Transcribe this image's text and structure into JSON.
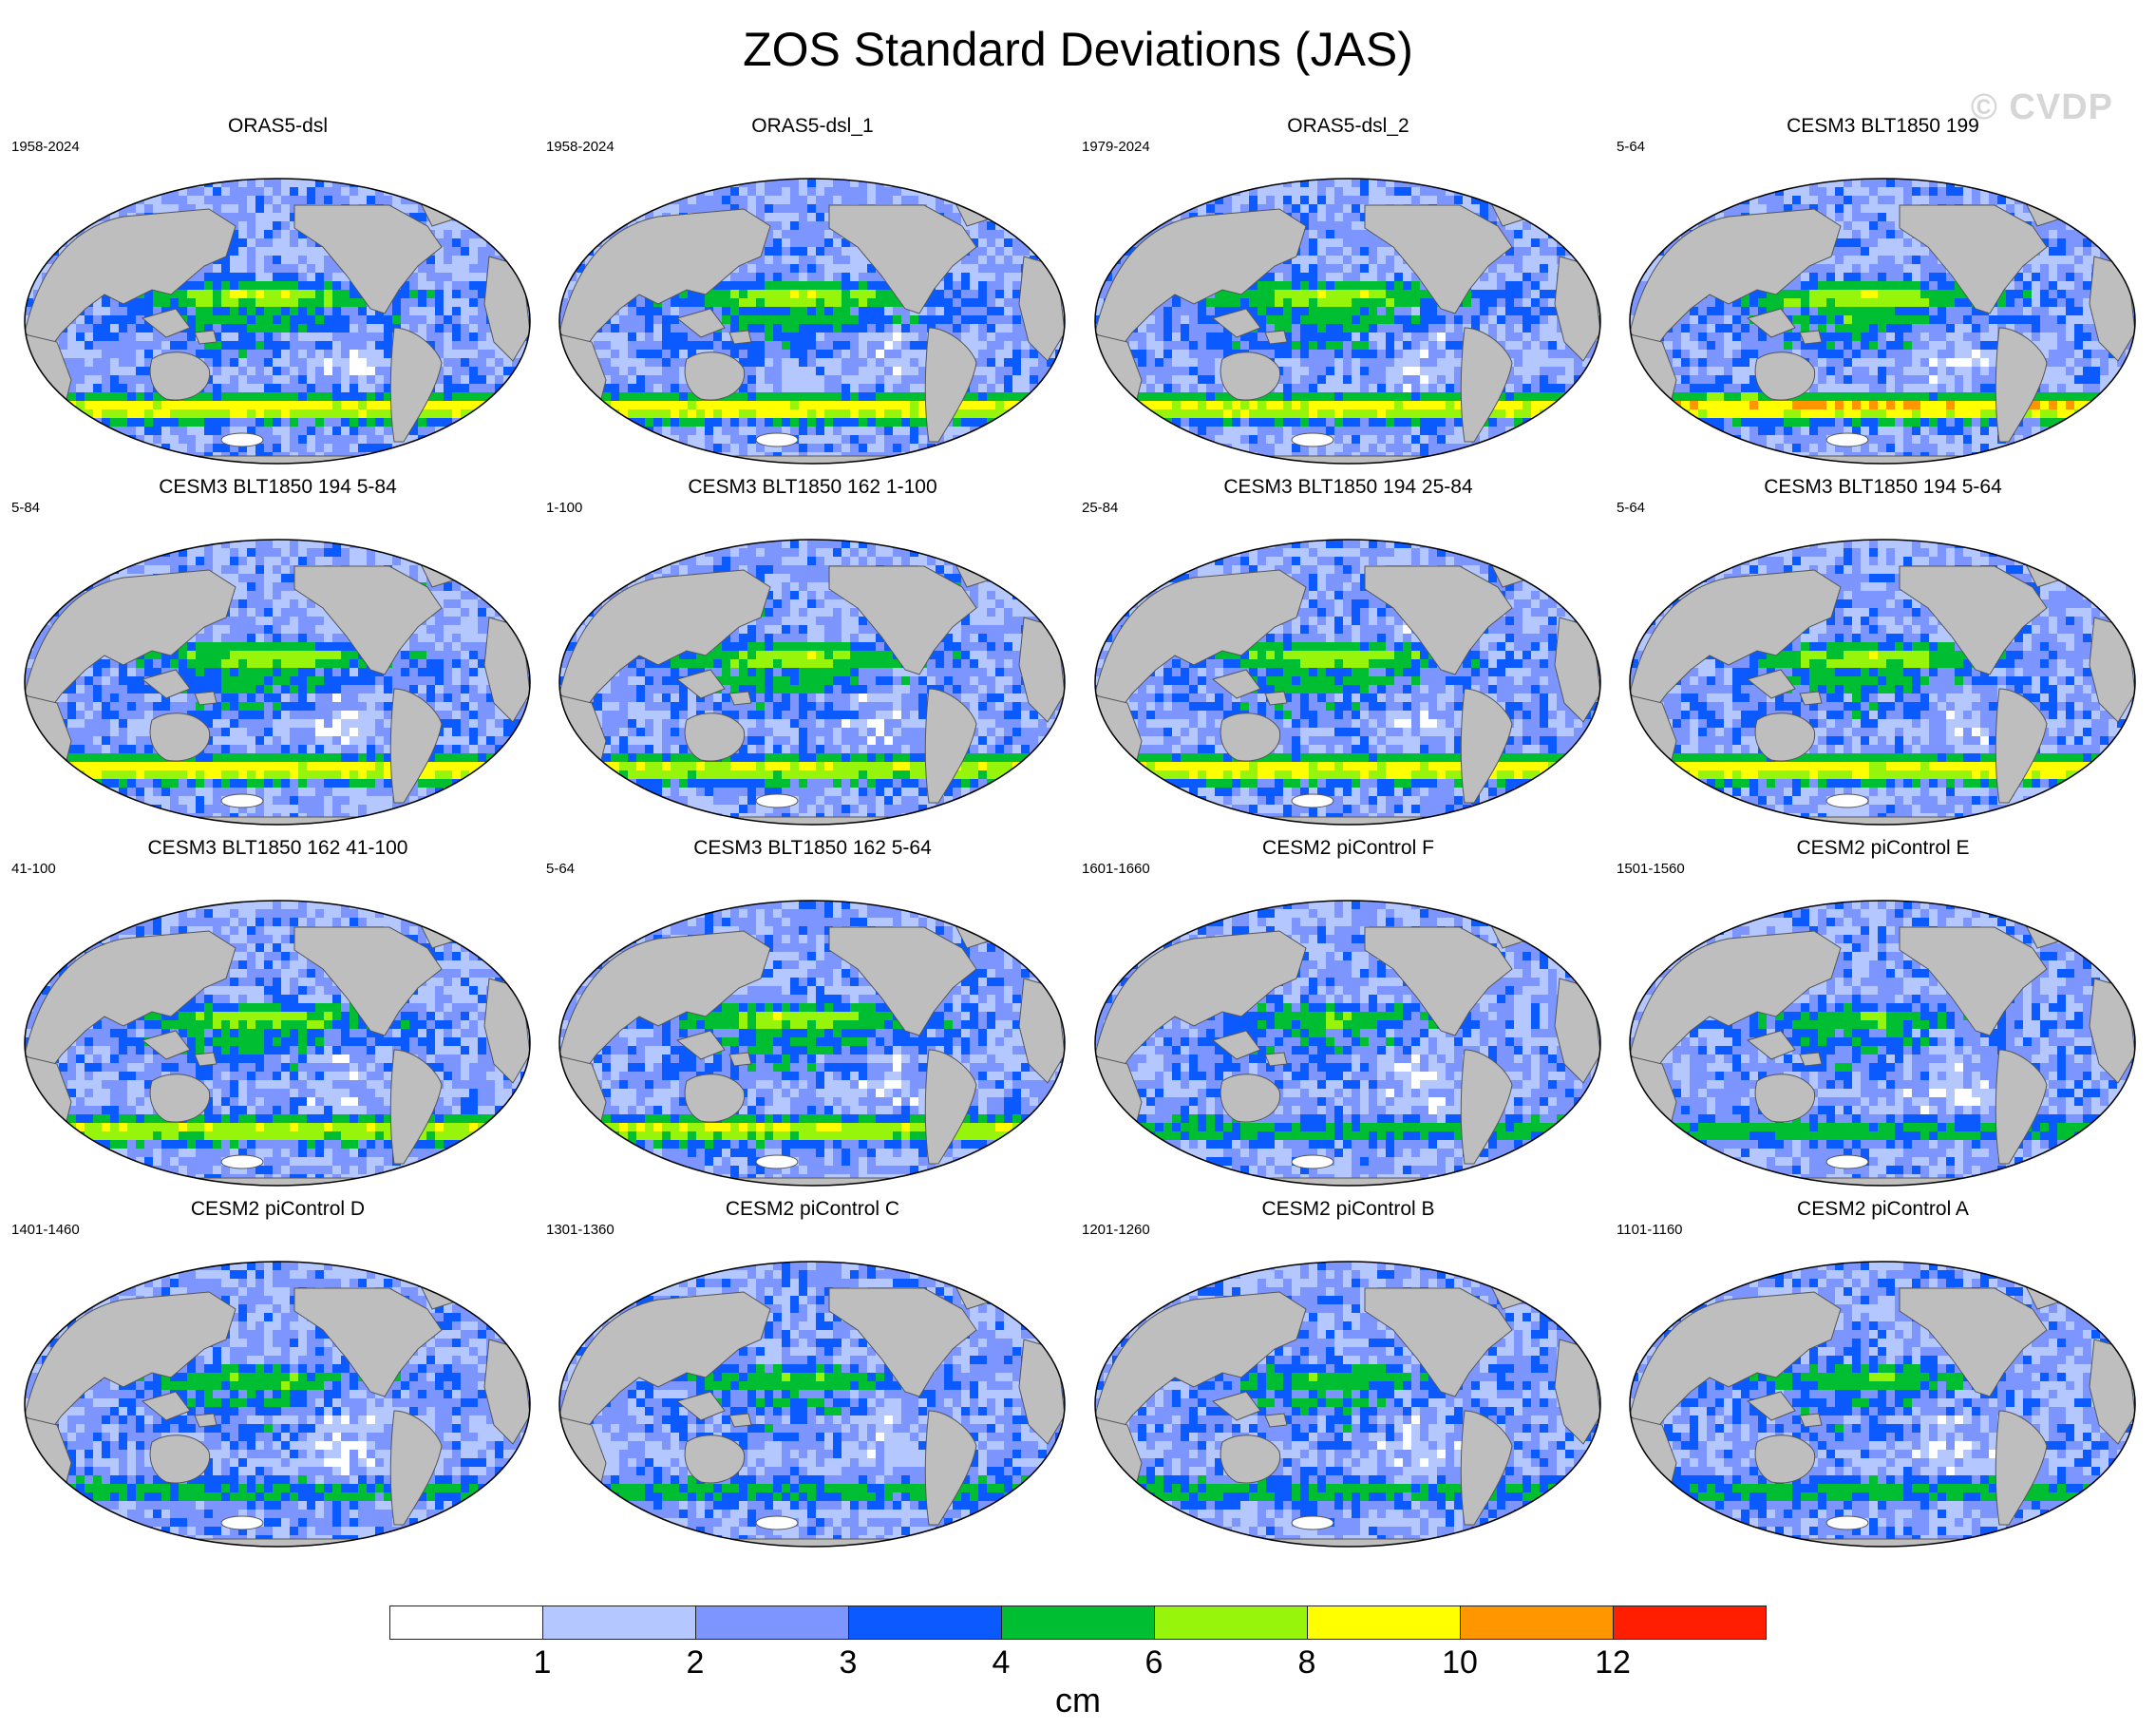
{
  "figure": {
    "title": "ZOS Standard Deviations (JAS)",
    "watermark": "© CVDP"
  },
  "panels": [
    {
      "title": "ORAS5-dsl",
      "years": "1958-2024",
      "intensity": 1.15,
      "so_band": 1.3
    },
    {
      "title": "ORAS5-dsl_1",
      "years": "1958-2024",
      "intensity": 1.15,
      "so_band": 1.3
    },
    {
      "title": "ORAS5-dsl_2",
      "years": "1979-2024",
      "intensity": 1.1,
      "so_band": 1.25
    },
    {
      "title": "CESM3 BLT1850 199",
      "years": "5-64",
      "intensity": 1.2,
      "so_band": 1.45
    },
    {
      "title": "CESM3 BLT1850 194 5-84",
      "years": "5-84",
      "intensity": 1.1,
      "so_band": 1.3
    },
    {
      "title": "CESM3 BLT1850 162 1-100",
      "years": "1-100",
      "intensity": 1.05,
      "so_band": 1.1
    },
    {
      "title": "CESM3 BLT1850 194 25-84",
      "years": "25-84",
      "intensity": 1.1,
      "so_band": 1.3
    },
    {
      "title": "CESM3 BLT1850 194 5-64",
      "years": "5-64",
      "intensity": 1.1,
      "so_band": 1.3
    },
    {
      "title": "CESM3 BLT1850 162 41-100",
      "years": "41-100",
      "intensity": 1.05,
      "so_band": 1.05
    },
    {
      "title": "CESM3 BLT1850 162 5-64",
      "years": "5-64",
      "intensity": 1.05,
      "so_band": 1.05
    },
    {
      "title": "CESM2 piControl F",
      "years": "1601-1660",
      "intensity": 0.7,
      "so_band": 0.45
    },
    {
      "title": "CESM2 piControl E",
      "years": "1501-1560",
      "intensity": 0.7,
      "so_band": 0.45
    },
    {
      "title": "CESM2 piControl D",
      "years": "1401-1460",
      "intensity": 0.7,
      "so_band": 0.45
    },
    {
      "title": "CESM2 piControl C",
      "years": "1301-1360",
      "intensity": 0.7,
      "so_band": 0.45
    },
    {
      "title": "CESM2 piControl B",
      "years": "1201-1260",
      "intensity": 0.7,
      "so_band": 0.45
    },
    {
      "title": "CESM2 piControl A",
      "years": "1101-1160",
      "intensity": 0.7,
      "so_band": 0.45
    }
  ],
  "colorbar": {
    "units": "cm",
    "levels": [
      "1",
      "2",
      "3",
      "4",
      "6",
      "8",
      "10",
      "12"
    ],
    "colors": [
      "#ffffff",
      "#b4c8ff",
      "#7d96ff",
      "#0a5aff",
      "#00be32",
      "#96f50a",
      "#ffff00",
      "#ff9600",
      "#ff1e00"
    ]
  },
  "map_colors": {
    "land": "#bebebe",
    "coast": "#555555"
  }
}
